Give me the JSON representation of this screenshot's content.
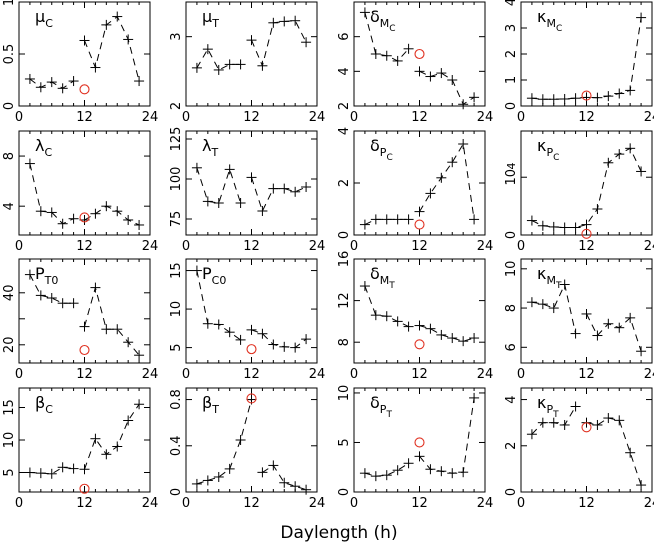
{
  "xlabel": "Daylength (h)",
  "colors": {
    "series": "#000000",
    "reference_marker": "#e03020",
    "background": "#ffffff"
  },
  "chart_data": [
    {
      "type": "line",
      "title": "μ",
      "subscript": "C",
      "xlim": [
        0,
        24
      ],
      "ylim": [
        0,
        1
      ],
      "yticks": [
        0,
        0.5,
        1
      ],
      "ytick_labels": [
        "0",
        "0.5",
        "1"
      ],
      "x": [
        2,
        4,
        6,
        8,
        10,
        12,
        14,
        16,
        18,
        20,
        22
      ],
      "segments": [
        [
          0,
          5
        ],
        [
          5,
          11
        ]
      ],
      "values": [
        0.26,
        0.18,
        0.23,
        0.17,
        0.24,
        0.63,
        0.37,
        0.78,
        0.86,
        0.64,
        0.24
      ],
      "reference": {
        "x": 12,
        "y": 0.16
      }
    },
    {
      "type": "line",
      "title": "μ",
      "subscript": "T",
      "xlim": [
        0,
        24
      ],
      "ylim": [
        2,
        3.5
      ],
      "yticks": [
        2,
        3
      ],
      "ytick_labels": [
        "2",
        "3"
      ],
      "x": [
        2,
        4,
        6,
        8,
        10,
        12,
        14,
        16,
        18,
        20,
        22
      ],
      "segments": [
        [
          0,
          5
        ],
        [
          5,
          11
        ]
      ],
      "values": [
        2.55,
        2.82,
        2.52,
        2.6,
        2.6,
        2.95,
        2.58,
        3.2,
        3.22,
        3.23,
        2.92
      ],
      "reference": null
    },
    {
      "type": "line",
      "title": "δ",
      "subscript": "M",
      "subsubscript": "C",
      "xlim": [
        0,
        24
      ],
      "ylim": [
        2,
        8
      ],
      "yticks": [
        2,
        4,
        6
      ],
      "ytick_labels": [
        "2",
        "4",
        "6"
      ],
      "x": [
        2,
        4,
        6,
        8,
        10,
        12,
        14,
        16,
        18,
        20,
        22
      ],
      "segments": [
        [
          0,
          5
        ],
        [
          5,
          11
        ]
      ],
      "values": [
        7.4,
        5.0,
        4.9,
        4.6,
        5.3,
        4.0,
        3.7,
        3.9,
        3.5,
        2.1,
        2.5
      ],
      "reference": {
        "x": 12,
        "y": 5.0
      }
    },
    {
      "type": "line",
      "title": "κ",
      "subscript": "M",
      "subsubscript": "C",
      "xlim": [
        0,
        24
      ],
      "ylim": [
        0,
        4
      ],
      "yticks": [
        0,
        1,
        2,
        3,
        4
      ],
      "ytick_labels": [
        "0",
        "1",
        "2",
        "3",
        "4"
      ],
      "x": [
        2,
        4,
        6,
        8,
        10,
        12,
        14,
        16,
        18,
        20,
        22
      ],
      "segments": [
        [
          0,
          11
        ]
      ],
      "values": [
        0.3,
        0.26,
        0.26,
        0.27,
        0.3,
        0.33,
        0.32,
        0.38,
        0.48,
        0.6,
        3.4
      ],
      "reference": {
        "x": 12,
        "y": 0.4
      }
    },
    {
      "type": "line",
      "title": "λ",
      "subscript": "C",
      "xlim": [
        0,
        24
      ],
      "ylim": [
        1.7,
        10
      ],
      "yticks": [
        4,
        8
      ],
      "ytick_labels": [
        "4",
        "8"
      ],
      "x": [
        2,
        4,
        6,
        8,
        10,
        12,
        14,
        16,
        18,
        20,
        22
      ],
      "segments": [
        [
          0,
          5
        ],
        [
          5,
          11
        ]
      ],
      "values": [
        7.4,
        3.6,
        3.5,
        2.6,
        3.0,
        2.9,
        3.4,
        4.0,
        3.6,
        2.9,
        2.5
      ],
      "reference": {
        "x": 12,
        "y": 3.1
      }
    },
    {
      "type": "line",
      "title": "λ",
      "subscript": "T",
      "xlim": [
        0,
        24
      ],
      "ylim": [
        65,
        130
      ],
      "yticks": [
        75,
        100,
        125
      ],
      "ytick_labels": [
        "75",
        "100",
        "125"
      ],
      "x": [
        2,
        4,
        6,
        8,
        10,
        12,
        14,
        16,
        18,
        20,
        22
      ],
      "segments": [
        [
          0,
          5
        ],
        [
          5,
          11
        ]
      ],
      "values": [
        107,
        86,
        85,
        106,
        85,
        101,
        80,
        94,
        94,
        92,
        95
      ],
      "reference": null
    },
    {
      "type": "line",
      "title": "δ",
      "subscript": "P",
      "subsubscript": "C",
      "xlim": [
        0,
        24
      ],
      "ylim": [
        0,
        4
      ],
      "yticks": [
        0,
        2,
        4
      ],
      "ytick_labels": [
        "0",
        "2",
        "4"
      ],
      "x": [
        2,
        4,
        6,
        8,
        10,
        12,
        14,
        16,
        18,
        20,
        22
      ],
      "segments": [
        [
          0,
          5
        ],
        [
          5,
          11
        ]
      ],
      "values": [
        0.4,
        0.6,
        0.6,
        0.6,
        0.6,
        0.9,
        1.6,
        2.2,
        2.8,
        3.5,
        0.6
      ],
      "reference": {
        "x": 12,
        "y": 0.4
      }
    },
    {
      "type": "line",
      "title": "κ",
      "subscript": "P",
      "subsubscript": "C",
      "xlim": [
        0,
        24
      ],
      "ylim": [
        0,
        18
      ],
      "yticks": [
        0,
        10
      ],
      "ytick_labels": [
        "0",
        "10"
      ],
      "extra_label": "4",
      "x": [
        2,
        4,
        6,
        8,
        10,
        12,
        14,
        16,
        18,
        20,
        22
      ],
      "segments": [
        [
          0,
          11
        ]
      ],
      "values": [
        2.5,
        1.6,
        1.4,
        1.3,
        1.3,
        1.8,
        4.5,
        12.5,
        14.0,
        15.0,
        11.0
      ],
      "reference": {
        "x": 12,
        "y": 0.2
      }
    },
    {
      "type": "line",
      "title": "P",
      "subscript": "T0",
      "xlim": [
        0,
        24
      ],
      "ylim": [
        13,
        53
      ],
      "yticks": [
        20,
        30,
        40
      ],
      "ytick_labels": [
        "20",
        "",
        "40"
      ],
      "x": [
        2,
        4,
        6,
        8,
        10,
        12,
        14,
        16,
        18,
        20,
        22
      ],
      "segments": [
        [
          0,
          5
        ],
        [
          5,
          11
        ]
      ],
      "values": [
        47,
        39,
        38,
        36,
        36,
        27,
        42,
        26,
        26,
        21,
        16
      ],
      "reference": {
        "x": 12,
        "y": 18
      }
    },
    {
      "type": "line",
      "title": "P",
      "subscript": "C0",
      "xlim": [
        0,
        24
      ],
      "ylim": [
        3,
        16.5
      ],
      "yticks": [
        5,
        10,
        15
      ],
      "ytick_labels": [
        "5",
        "10",
        "15"
      ],
      "x": [
        2,
        4,
        6,
        8,
        10,
        12,
        14,
        16,
        18,
        20,
        22
      ],
      "segments": [
        [
          0,
          5
        ],
        [
          5,
          11
        ]
      ],
      "values": [
        15,
        8.1,
        8.0,
        7.0,
        6.0,
        7.3,
        6.8,
        5.4,
        5.1,
        5.0,
        6.1
      ],
      "reference": {
        "x": 12,
        "y": 4.8
      }
    },
    {
      "type": "line",
      "title": "δ",
      "subscript": "M",
      "subsubscript": "T",
      "xlim": [
        0,
        24
      ],
      "ylim": [
        6,
        16
      ],
      "yticks": [
        8,
        12,
        16
      ],
      "ytick_labels": [
        "8",
        "12",
        "16"
      ],
      "x": [
        2,
        4,
        6,
        8,
        10,
        12,
        14,
        16,
        18,
        20,
        22
      ],
      "segments": [
        [
          0,
          5
        ],
        [
          5,
          11
        ]
      ],
      "values": [
        13.4,
        10.6,
        10.5,
        10.0,
        9.5,
        9.6,
        9.3,
        8.7,
        8.4,
        8.1,
        8.4
      ],
      "reference": {
        "x": 12,
        "y": 7.8
      }
    },
    {
      "type": "line",
      "title": "κ",
      "subscript": "M",
      "subsubscript": "T",
      "xlim": [
        0,
        24
      ],
      "ylim": [
        5.2,
        10.5
      ],
      "yticks": [
        6,
        8,
        10
      ],
      "ytick_labels": [
        "6",
        "8",
        "10"
      ],
      "x": [
        2,
        4,
        6,
        8,
        10,
        12,
        14,
        16,
        18,
        20,
        22
      ],
      "segments": [
        [
          0,
          5
        ],
        [
          5,
          11
        ]
      ],
      "values": [
        8.3,
        8.2,
        8.0,
        9.2,
        6.7,
        7.7,
        6.6,
        7.2,
        7.0,
        7.5,
        5.8
      ],
      "reference": null
    },
    {
      "type": "line",
      "title": "β",
      "subscript": "C",
      "xlim": [
        0,
        24
      ],
      "ylim": [
        2,
        18
      ],
      "yticks": [
        5,
        10,
        15
      ],
      "ytick_labels": [
        "5",
        "10",
        "15"
      ],
      "x": [
        2,
        4,
        6,
        8,
        10,
        12,
        14,
        16,
        18,
        20,
        22
      ],
      "segments": [
        [
          0,
          5
        ],
        [
          5,
          11
        ]
      ],
      "values": [
        5.0,
        4.9,
        4.8,
        5.8,
        5.6,
        5.5,
        10.2,
        7.8,
        9.0,
        13.0,
        15.5
      ],
      "reference": {
        "x": 12,
        "y": 2.5
      }
    },
    {
      "type": "line",
      "title": "β",
      "subscript": "T",
      "xlim": [
        0,
        24
      ],
      "ylim": [
        0,
        0.9
      ],
      "yticks": [
        0,
        0.4,
        0.8
      ],
      "ytick_labels": [
        "0",
        "0.4",
        "0.8"
      ],
      "x": [
        2,
        4,
        6,
        8,
        10,
        12,
        14,
        16,
        18,
        20,
        22
      ],
      "segments": [
        [
          0,
          6
        ],
        [
          6,
          11
        ]
      ],
      "values": [
        0.07,
        0.1,
        0.13,
        0.2,
        0.45,
        0.8,
        0.17,
        0.23,
        0.08,
        0.05,
        0.02
      ],
      "reference": {
        "x": 12,
        "y": 0.81
      }
    },
    {
      "type": "line",
      "title": "δ",
      "subscript": "P",
      "subsubscript": "T",
      "xlim": [
        0,
        24
      ],
      "ylim": [
        0,
        10.5
      ],
      "yticks": [
        0,
        5,
        10
      ],
      "ytick_labels": [
        "0",
        "5",
        "10"
      ],
      "x": [
        2,
        4,
        6,
        8,
        10,
        12,
        14,
        16,
        18,
        20,
        22
      ],
      "segments": [
        [
          0,
          5
        ],
        [
          5,
          11
        ]
      ],
      "values": [
        1.9,
        1.6,
        1.7,
        2.2,
        2.9,
        3.6,
        2.3,
        2.1,
        1.9,
        2.0,
        9.5
      ],
      "reference": {
        "x": 12,
        "y": 5.0
      }
    },
    {
      "type": "line",
      "title": "κ",
      "subscript": "P",
      "subsubscript": "T",
      "xlim": [
        0,
        24
      ],
      "ylim": [
        0,
        4.5
      ],
      "yticks": [
        0,
        2,
        4
      ],
      "ytick_labels": [
        "0",
        "2",
        "4"
      ],
      "x": [
        2,
        4,
        6,
        8,
        10,
        12,
        14,
        16,
        18,
        20,
        22
      ],
      "segments": [
        [
          0,
          5
        ],
        [
          5,
          11
        ]
      ],
      "values": [
        2.5,
        3.0,
        3.0,
        2.9,
        3.7,
        3.0,
        2.9,
        3.2,
        3.1,
        1.7,
        0.3
      ],
      "reference": {
        "x": 12,
        "y": 2.8
      }
    }
  ]
}
